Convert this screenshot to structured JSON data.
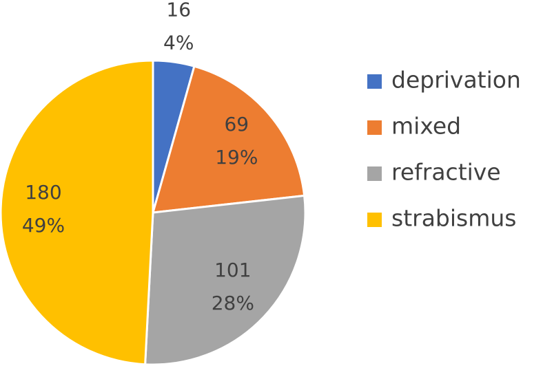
{
  "chart_data": {
    "type": "pie",
    "categories": [
      "deprivation",
      "mixed",
      "refractive",
      "strabismus"
    ],
    "values": [
      16,
      69,
      101,
      180
    ],
    "percent_labels": [
      "4%",
      "19%",
      "28%",
      "49%"
    ],
    "colors": [
      "#4472c4",
      "#ed7d31",
      "#a5a5a5",
      "#ffc000"
    ],
    "legend": "right"
  }
}
